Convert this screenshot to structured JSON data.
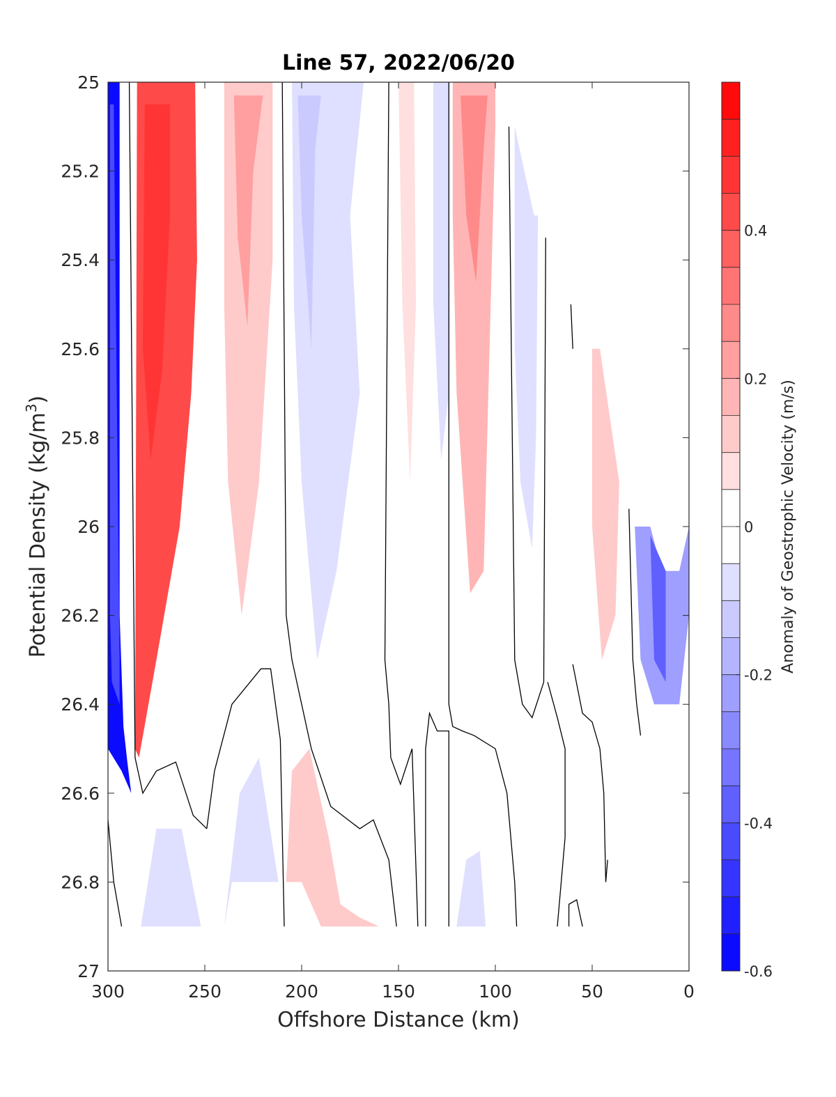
{
  "chart_data": {
    "type": "heatmap",
    "subtype": "filled-contour",
    "title": "Line 57, 2022/06/20",
    "xlabel": "Offshore Distance (km)",
    "ylabel_main": "Potential Density (kg/m",
    "ylabel_sup": "3",
    "ylabel_end": ")",
    "xlim": [
      300,
      0
    ],
    "x_reversed": true,
    "ylim": [
      25,
      27
    ],
    "y_reversed": true,
    "x_ticks": [
      300,
      250,
      200,
      150,
      100,
      50,
      0
    ],
    "x_tick_labels": [
      "300",
      "250",
      "200",
      "150",
      "100",
      "50",
      "0"
    ],
    "y_ticks": [
      25,
      25.2,
      25.4,
      25.6,
      25.8,
      26,
      26.2,
      26.4,
      26.6,
      26.8,
      27
    ],
    "y_tick_labels": [
      "25",
      "25.2",
      "25.4",
      "25.6",
      "25.8",
      "26",
      "26.2",
      "26.4",
      "26.6",
      "26.8",
      "27"
    ],
    "colorbar": {
      "label": "Anomaly of Geostrophic Velocity (m/s)",
      "range": [
        -0.6,
        0.6
      ],
      "levels": 24,
      "ticks": [
        -0.6,
        -0.4,
        -0.2,
        0,
        0.2,
        0.4
      ],
      "tick_labels": [
        "-0.6",
        "-0.4",
        "-0.2",
        "0",
        "0.2",
        "0.4"
      ],
      "cmap": "blue-white-red"
    },
    "bands": [
      {
        "name": "offshore jet (southward)",
        "value": -0.55,
        "points": [
          [
            300,
            25
          ],
          [
            294,
            25
          ],
          [
            294,
            25.9
          ],
          [
            294,
            26.2
          ],
          [
            292,
            26.45
          ],
          [
            290,
            26.53
          ],
          [
            288,
            26.6
          ],
          [
            293,
            26.55
          ],
          [
            300,
            26.5
          ]
        ]
      },
      {
        "name": "offshore jet core",
        "value": -0.42,
        "points": [
          [
            299,
            25.05
          ],
          [
            297,
            25.05
          ],
          [
            295,
            25.9
          ],
          [
            294,
            26.3
          ],
          [
            294,
            26.4
          ],
          [
            298,
            26.35
          ],
          [
            299,
            26.2
          ]
        ]
      },
      {
        "name": "northward jet",
        "value": 0.4,
        "points": [
          [
            285,
            25
          ],
          [
            255,
            25
          ],
          [
            254,
            25.4
          ],
          [
            257,
            25.7
          ],
          [
            263,
            26.0
          ],
          [
            275,
            26.3
          ],
          [
            284,
            26.52
          ],
          [
            286,
            26.5
          ]
        ]
      },
      {
        "name": "northward jet core",
        "value": 0.47,
        "points": [
          [
            281,
            25.05
          ],
          [
            268,
            25.05
          ],
          [
            268,
            25.3
          ],
          [
            272,
            25.65
          ],
          [
            278,
            25.85
          ],
          [
            282,
            25.6
          ]
        ]
      },
      {
        "name": "positive band ~225 km",
        "value": 0.14,
        "points": [
          [
            240,
            25
          ],
          [
            215,
            25
          ],
          [
            215,
            25.4
          ],
          [
            222,
            25.9
          ],
          [
            231,
            26.2
          ],
          [
            238,
            25.9
          ],
          [
            240,
            25.5
          ]
        ]
      },
      {
        "name": "positive band ~225 km core",
        "value": 0.24,
        "points": [
          [
            235,
            25.03
          ],
          [
            220,
            25.03
          ],
          [
            225,
            25.2
          ],
          [
            228,
            25.55
          ],
          [
            233,
            25.35
          ]
        ]
      },
      {
        "name": "negative band ~190 km",
        "value": -0.08,
        "points": [
          [
            205,
            25
          ],
          [
            168,
            25
          ],
          [
            175,
            25.3
          ],
          [
            170,
            25.7
          ],
          [
            182,
            26.1
          ],
          [
            192,
            26.3
          ],
          [
            200,
            25.9
          ],
          [
            204,
            25.5
          ]
        ]
      },
      {
        "name": "negative band ~190 km core",
        "value": -0.15,
        "points": [
          [
            202,
            25.03
          ],
          [
            190,
            25.03
          ],
          [
            193,
            25.15
          ],
          [
            195,
            25.6
          ],
          [
            200,
            25.3
          ]
        ]
      },
      {
        "name": "positive band ~145 km",
        "value": 0.08,
        "points": [
          [
            150,
            25
          ],
          [
            142,
            25
          ],
          [
            141,
            25.5
          ],
          [
            144,
            25.9
          ],
          [
            148,
            25.5
          ]
        ]
      },
      {
        "name": "negative band ~130 km",
        "value": -0.08,
        "points": [
          [
            132,
            25
          ],
          [
            124,
            25
          ],
          [
            124,
            25.7
          ],
          [
            128,
            25.85
          ],
          [
            132,
            25.5
          ]
        ]
      },
      {
        "name": "positive jet ~110 km",
        "value": 0.18,
        "points": [
          [
            122,
            25
          ],
          [
            100,
            25
          ],
          [
            100,
            25.1
          ],
          [
            103,
            25.6
          ],
          [
            106,
            26.1
          ],
          [
            113,
            26.15
          ],
          [
            120,
            25.7
          ],
          [
            122,
            25.3
          ]
        ]
      },
      {
        "name": "positive jet ~110 km core",
        "value": 0.28,
        "points": [
          [
            118,
            25.03
          ],
          [
            104,
            25.03
          ],
          [
            106,
            25.15
          ],
          [
            110,
            25.45
          ],
          [
            115,
            25.3
          ]
        ]
      },
      {
        "name": "negative band ~85 km",
        "value": -0.08,
        "points": [
          [
            90,
            25.1
          ],
          [
            80,
            25.3
          ],
          [
            78,
            25.3
          ],
          [
            79,
            25.8
          ],
          [
            81,
            26.05
          ],
          [
            87,
            25.9
          ],
          [
            90,
            25.6
          ]
        ]
      },
      {
        "name": "positive band ~45 km",
        "value": 0.1,
        "points": [
          [
            50,
            25.6
          ],
          [
            46,
            25.6
          ],
          [
            36,
            25.9
          ],
          [
            38,
            26.2
          ],
          [
            45,
            26.3
          ],
          [
            50,
            26.0
          ]
        ]
      },
      {
        "name": "nearshore negative",
        "value": -0.25,
        "points": [
          [
            28,
            26.0
          ],
          [
            20,
            26.0
          ],
          [
            14,
            26.1
          ],
          [
            5,
            26.1
          ],
          [
            0,
            26.0
          ],
          [
            0,
            26.2
          ],
          [
            5,
            26.4
          ],
          [
            18,
            26.4
          ],
          [
            25,
            26.3
          ]
        ]
      },
      {
        "name": "nearshore negative core",
        "value": -0.38,
        "points": [
          [
            20,
            26.02
          ],
          [
            12,
            26.1
          ],
          [
            12,
            26.35
          ],
          [
            18,
            26.3
          ]
        ]
      },
      {
        "name": "deep negative ~265 km",
        "value": -0.08,
        "points": [
          [
            283,
            26.9
          ],
          [
            275,
            26.68
          ],
          [
            262,
            26.68
          ],
          [
            252,
            26.9
          ]
        ]
      },
      {
        "name": "deep negative ~225 km",
        "value": -0.1,
        "points": [
          [
            240,
            26.9
          ],
          [
            232,
            26.6
          ],
          [
            222,
            26.52
          ],
          [
            212,
            26.8
          ],
          [
            236,
            26.8
          ]
        ]
      },
      {
        "name": "deep positive ~195 km",
        "value": 0.12,
        "points": [
          [
            208,
            26.8
          ],
          [
            205,
            26.55
          ],
          [
            196,
            26.5
          ],
          [
            186,
            26.7
          ],
          [
            180,
            26.85
          ],
          [
            170,
            26.88
          ],
          [
            160,
            26.9
          ],
          [
            190,
            26.9
          ],
          [
            200,
            26.8
          ]
        ]
      },
      {
        "name": "deep negative ~110 km",
        "value": -0.08,
        "points": [
          [
            120,
            26.9
          ],
          [
            115,
            26.75
          ],
          [
            108,
            26.73
          ],
          [
            105,
            26.9
          ]
        ]
      }
    ],
    "zero_contours": [
      {
        "name": "zero-contour-1",
        "points": [
          [
            289,
            25
          ],
          [
            286,
            26.52
          ],
          [
            282,
            26.6
          ],
          [
            275,
            26.55
          ],
          [
            265,
            26.53
          ],
          [
            256,
            26.65
          ],
          [
            249,
            26.68
          ]
        ]
      },
      {
        "name": "zero-contour-2",
        "points": [
          [
            300,
            26.66
          ],
          [
            297,
            26.8
          ],
          [
            293,
            26.9
          ]
        ]
      },
      {
        "name": "zero-contour-3",
        "points": [
          [
            249,
            26.68
          ],
          [
            245,
            26.55
          ],
          [
            236,
            26.4
          ],
          [
            221,
            26.32
          ],
          [
            216,
            26.32
          ],
          [
            211,
            26.48
          ],
          [
            209,
            26.9
          ]
        ]
      },
      {
        "name": "zero-contour-4",
        "points": [
          [
            210,
            25
          ],
          [
            208,
            26.2
          ],
          [
            205,
            26.3
          ],
          [
            200,
            26.4
          ],
          [
            195,
            26.5
          ],
          [
            185,
            26.63
          ],
          [
            170,
            26.68
          ],
          [
            163,
            26.66
          ],
          [
            155,
            26.75
          ],
          [
            151,
            26.9
          ]
        ]
      },
      {
        "name": "zero-contour-5",
        "points": [
          [
            155,
            25
          ],
          [
            157,
            26.3
          ],
          [
            155,
            26.4
          ],
          [
            154,
            26.52
          ],
          [
            149,
            26.58
          ],
          [
            143,
            26.5
          ],
          [
            140,
            26.9
          ]
        ]
      },
      {
        "name": "zero-contour-6",
        "points": [
          [
            124,
            25
          ],
          [
            124,
            26.4
          ],
          [
            122,
            26.45
          ],
          [
            117,
            26.46
          ],
          [
            111,
            26.47
          ],
          [
            100,
            26.5
          ],
          [
            94,
            26.6
          ],
          [
            90,
            26.8
          ],
          [
            89,
            26.9
          ]
        ]
      },
      {
        "name": "zero-contour-7",
        "points": [
          [
            136,
            26.9
          ],
          [
            136,
            26.5
          ],
          [
            134,
            26.42
          ],
          [
            130,
            26.46
          ],
          [
            124,
            26.46
          ],
          [
            124,
            26.9
          ]
        ]
      },
      {
        "name": "zero-contour-8",
        "points": [
          [
            93,
            25.1
          ],
          [
            90,
            26.3
          ],
          [
            86,
            26.4
          ],
          [
            81,
            26.43
          ],
          [
            75,
            26.35
          ],
          [
            74,
            25.35
          ]
        ]
      },
      {
        "name": "zero-contour-9",
        "points": [
          [
            73,
            26.35
          ],
          [
            68,
            26.43
          ],
          [
            64,
            26.5
          ],
          [
            64,
            26.7
          ],
          [
            68,
            26.9
          ]
        ]
      },
      {
        "name": "zero-contour-10",
        "points": [
          [
            60,
            26.31
          ],
          [
            55,
            26.42
          ],
          [
            50,
            26.44
          ],
          [
            46,
            26.5
          ],
          [
            44,
            26.6
          ],
          [
            43,
            26.8
          ],
          [
            42,
            26.75
          ]
        ]
      },
      {
        "name": "zero-contour-11",
        "points": [
          [
            61,
            25.5
          ],
          [
            60,
            25.6
          ]
        ]
      },
      {
        "name": "zero-contour-12",
        "points": [
          [
            62,
            26.9
          ],
          [
            62,
            26.85
          ],
          [
            58,
            26.84
          ],
          [
            55,
            26.9
          ]
        ]
      },
      {
        "name": "zero-contour-13",
        "points": [
          [
            31,
            25.96
          ],
          [
            29,
            26.3
          ],
          [
            27,
            26.4
          ],
          [
            25,
            26.47
          ]
        ]
      }
    ]
  }
}
